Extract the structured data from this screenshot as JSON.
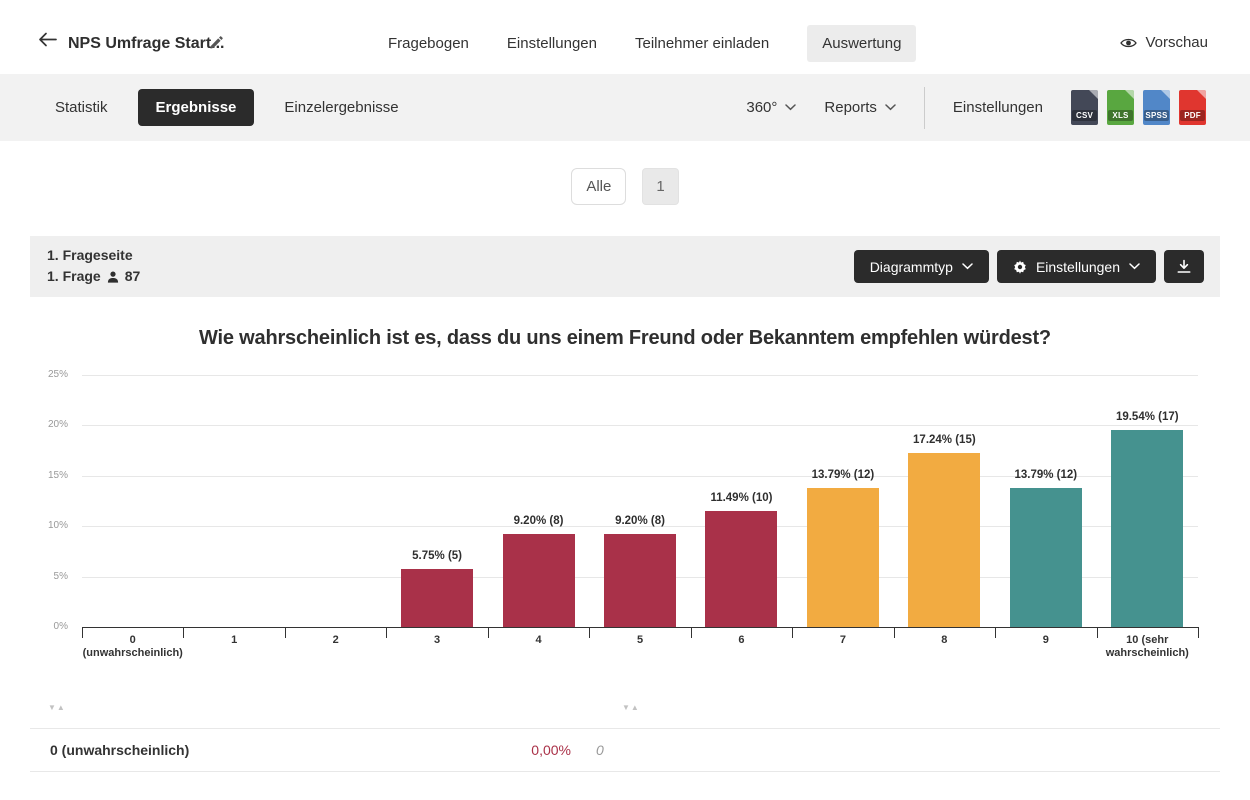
{
  "header": {
    "title": "NPS Umfrage Start...",
    "nav": [
      {
        "label": "Fragebogen"
      },
      {
        "label": "Einstellungen"
      },
      {
        "label": "Teilnehmer einladen"
      },
      {
        "label": "Auswertung",
        "active": true
      }
    ],
    "preview_label": "Vorschau"
  },
  "toolbar": {
    "tabs": [
      {
        "label": "Statistik"
      },
      {
        "label": "Ergebnisse",
        "active": true
      },
      {
        "label": "Einzelergebnisse"
      }
    ],
    "dropdown_360_label": "360°",
    "dropdown_reports_label": "Reports",
    "settings_label": "Einstellungen",
    "export_icons": [
      {
        "name": "csv-export-icon",
        "label": "CSV",
        "color": "#434857"
      },
      {
        "name": "xls-export-icon",
        "label": "XLS",
        "color": "#59a740"
      },
      {
        "name": "spss-export-icon",
        "label": "SPSS",
        "color": "#5187c8"
      },
      {
        "name": "pdf-export-icon",
        "label": "PDF",
        "color": "#e0362f"
      }
    ]
  },
  "pagination": {
    "all_label": "Alle",
    "page_label": "1"
  },
  "section": {
    "page_label": "1. Frageseite",
    "question_label": "1. Frage",
    "respondent_count": "87",
    "chart_type_button_label": "Diagrammtyp",
    "settings_button_label": "Einstellungen"
  },
  "chart_data": {
    "type": "bar",
    "title": "Wie wahrscheinlich ist es, dass du uns einem Freund oder Bekanntem empfehlen würdest?",
    "categories": [
      "0 (unwahrscheinlich)",
      "1",
      "2",
      "3",
      "4",
      "5",
      "6",
      "7",
      "8",
      "9",
      "10 (sehr wahrscheinlich)"
    ],
    "values": [
      0,
      0,
      0,
      5.75,
      9.2,
      9.2,
      11.49,
      13.79,
      17.24,
      13.79,
      19.54
    ],
    "counts": [
      0,
      0,
      0,
      5,
      8,
      8,
      10,
      12,
      15,
      12,
      17
    ],
    "data_labels": [
      "",
      "",
      "",
      "5.75% (5)",
      "9.20% (8)",
      "9.20% (8)",
      "11.49% (10)",
      "13.79% (12)",
      "17.24% (15)",
      "13.79% (12)",
      "19.54% (17)"
    ],
    "x_display": [
      [
        "0",
        "(unwahrscheinlich)"
      ],
      [
        "1"
      ],
      [
        "2"
      ],
      [
        "3"
      ],
      [
        "4"
      ],
      [
        "5"
      ],
      [
        "6"
      ],
      [
        "7"
      ],
      [
        "8"
      ],
      [
        "9"
      ],
      [
        "10 (sehr",
        "wahrscheinlich)"
      ]
    ],
    "bar_colors": [
      "#a93149",
      "#a93149",
      "#a93149",
      "#a93149",
      "#a93149",
      "#a93149",
      "#a93149",
      "#f2ab41",
      "#f2ab41",
      "#45928f",
      "#45928f"
    ],
    "ylim": [
      0,
      25
    ],
    "ytick_values": [
      0,
      5,
      10,
      15,
      20,
      25
    ],
    "ytick_labels": [
      "0%",
      "5%",
      "10%",
      "15%",
      "20%",
      "25%"
    ],
    "grid": true,
    "legend": false,
    "xlabel": "",
    "ylabel": ""
  },
  "table": {
    "sort_icon": "▼▲",
    "rows": [
      {
        "label": "0 (unwahrscheinlich)",
        "percent": "0,00%",
        "count": "0"
      }
    ]
  },
  "colors": {
    "detractor": "#a93149",
    "passive": "#f2ab41",
    "promoter": "#45928f",
    "dark_button": "#2b2b2b",
    "negative_percent": "#aa3148",
    "toolbar_bg": "#f2f2f2",
    "section_bg": "#efefef"
  }
}
